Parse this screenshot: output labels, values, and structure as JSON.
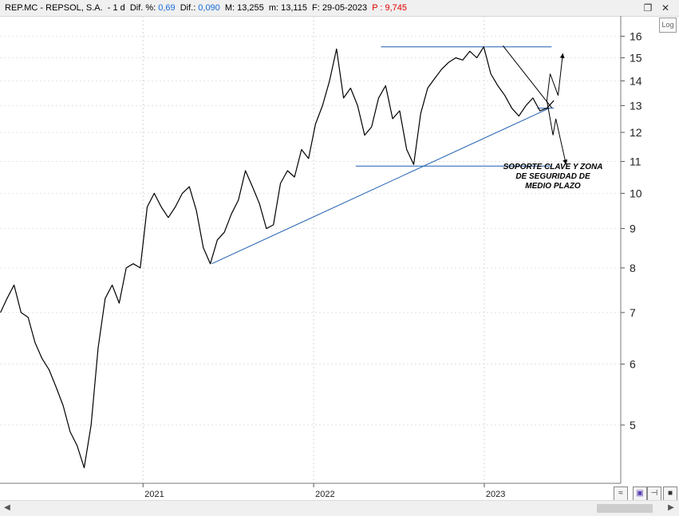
{
  "header": {
    "symbol": "REP.MC - REPSOL,  S.A.",
    "interval": "-  1 d",
    "dif_pct_label": "Dif. %:",
    "dif_pct_value": "0,69",
    "dif_label": "Dif.:",
    "dif_value": "0,090",
    "max_label": "M: 13,255",
    "min_label": "m: 13,115",
    "date_label": "F: 29-05-2023",
    "price_label": "P : 9,745"
  },
  "window_buttons": {
    "restore": "❐",
    "close": "✕"
  },
  "log_button": "Log",
  "annotation": [
    "SOPORTE CLAVE Y ZONA",
    "DE SEGURIDAD DE",
    "MEDIO PLAZO"
  ],
  "colors": {
    "price_line": "#000000",
    "trend_lines": "#1f5fb0",
    "highlight_red": "#e00000",
    "highlight_blue": "#1a6cd6"
  },
  "icons": [
    "chart-mode-icon",
    "save-icon",
    "pin-icon",
    "fill-square-icon",
    "scroll-left-icon",
    "scroll-right-icon"
  ],
  "chart_data": {
    "type": "line",
    "title": "REP.MC - REPSOL, S.A.",
    "xlabel": "",
    "ylabel": "",
    "y_scale": "log",
    "ylim": [
      4.2,
      17.0
    ],
    "y_ticks": [
      5,
      6,
      7,
      8,
      9,
      10,
      11,
      12,
      13,
      14,
      15,
      16
    ],
    "x_tick_labels": [
      "2021",
      "2022",
      "2023"
    ],
    "x_ticks": [
      "2021-01-01",
      "2022-01-01",
      "2023-01-01"
    ],
    "xlim": [
      "2020-03-01",
      "2023-10-20"
    ],
    "grid": true,
    "series": [
      {
        "name": "",
        "dates": [
          "2020-03-02",
          "2020-03-16",
          "2020-03-31",
          "2020-04-15",
          "2020-04-30",
          "2020-05-15",
          "2020-05-30",
          "2020-06-14",
          "2020-06-29",
          "2020-07-14",
          "2020-07-29",
          "2020-08-13",
          "2020-08-28",
          "2020-09-12",
          "2020-09-27",
          "2020-10-12",
          "2020-10-27",
          "2020-11-11",
          "2020-11-26",
          "2020-12-11",
          "2020-12-26",
          "2021-01-10",
          "2021-01-25",
          "2021-02-09",
          "2021-02-24",
          "2021-03-11",
          "2021-03-26",
          "2021-04-10",
          "2021-04-25",
          "2021-05-10",
          "2021-05-25",
          "2021-06-09",
          "2021-06-24",
          "2021-07-09",
          "2021-07-24",
          "2021-08-08",
          "2021-08-23",
          "2021-09-07",
          "2021-09-22",
          "2021-10-07",
          "2021-10-22",
          "2021-11-06",
          "2021-11-21",
          "2021-12-06",
          "2021-12-21",
          "2022-01-05",
          "2022-01-20",
          "2022-02-04",
          "2022-02-19",
          "2022-03-06",
          "2022-03-21",
          "2022-04-05",
          "2022-04-20",
          "2022-05-05",
          "2022-05-20",
          "2022-06-04",
          "2022-06-19",
          "2022-07-04",
          "2022-07-19",
          "2022-08-03",
          "2022-08-18",
          "2022-09-02",
          "2022-09-17",
          "2022-10-02",
          "2022-10-17",
          "2022-11-01",
          "2022-11-16",
          "2022-12-01",
          "2022-12-16",
          "2022-12-31",
          "2023-01-15",
          "2023-01-30",
          "2023-02-14",
          "2023-03-01",
          "2023-03-16",
          "2023-03-31",
          "2023-04-15",
          "2023-04-30",
          "2023-05-15",
          "2023-05-30"
        ],
        "values": [
          7.0,
          7.3,
          7.6,
          7.0,
          6.9,
          6.4,
          6.1,
          5.9,
          5.6,
          5.3,
          4.9,
          4.7,
          4.4,
          5.0,
          6.3,
          7.3,
          7.6,
          7.2,
          8.0,
          8.1,
          8.0,
          9.6,
          10.0,
          9.6,
          9.3,
          9.6,
          10.0,
          10.2,
          9.5,
          8.5,
          8.1,
          8.7,
          8.9,
          9.4,
          9.8,
          10.7,
          10.2,
          9.7,
          9.0,
          9.1,
          10.3,
          10.7,
          10.5,
          11.4,
          11.1,
          12.3,
          13.0,
          14.0,
          15.4,
          13.3,
          13.7,
          13.0,
          11.9,
          12.2,
          13.3,
          13.8,
          12.5,
          12.8,
          11.4,
          10.9,
          12.7,
          13.7,
          14.1,
          14.5,
          14.8,
          15.0,
          14.9,
          15.3,
          15.0,
          15.5,
          14.3,
          13.8,
          13.4,
          12.9,
          12.6,
          13.0,
          13.3,
          12.8,
          12.9,
          13.2
        ]
      }
    ],
    "trendlines": [
      {
        "from": [
          "2022-05-25",
          15.5
        ],
        "to": [
          "2023-05-25",
          15.5
        ]
      },
      {
        "from": [
          "2022-04-01",
          10.85
        ],
        "to": [
          "2023-05-25",
          10.85
        ]
      },
      {
        "from": [
          "2021-05-28",
          8.1
        ],
        "to": [
          "2023-05-20",
          12.9
        ]
      },
      {
        "from": [
          "2023-02-10",
          15.55
        ],
        "to": [
          "2023-05-26",
          12.9
        ]
      },
      {
        "from": [
          "2023-04-25",
          12.9
        ],
        "to": [
          "2023-05-30",
          12.9
        ]
      }
    ],
    "projection_arrows": [
      {
        "points": [
          [
            "2023-05-15",
            13.2
          ],
          [
            "2023-05-22",
            14.3
          ],
          [
            "2023-06-08",
            13.4
          ],
          [
            "2023-06-18",
            15.2
          ]
        ]
      },
      {
        "points": [
          [
            "2023-05-15",
            13.2
          ],
          [
            "2023-05-28",
            11.9
          ],
          [
            "2023-06-03",
            12.5
          ],
          [
            "2023-06-25",
            10.9
          ]
        ]
      }
    ]
  }
}
